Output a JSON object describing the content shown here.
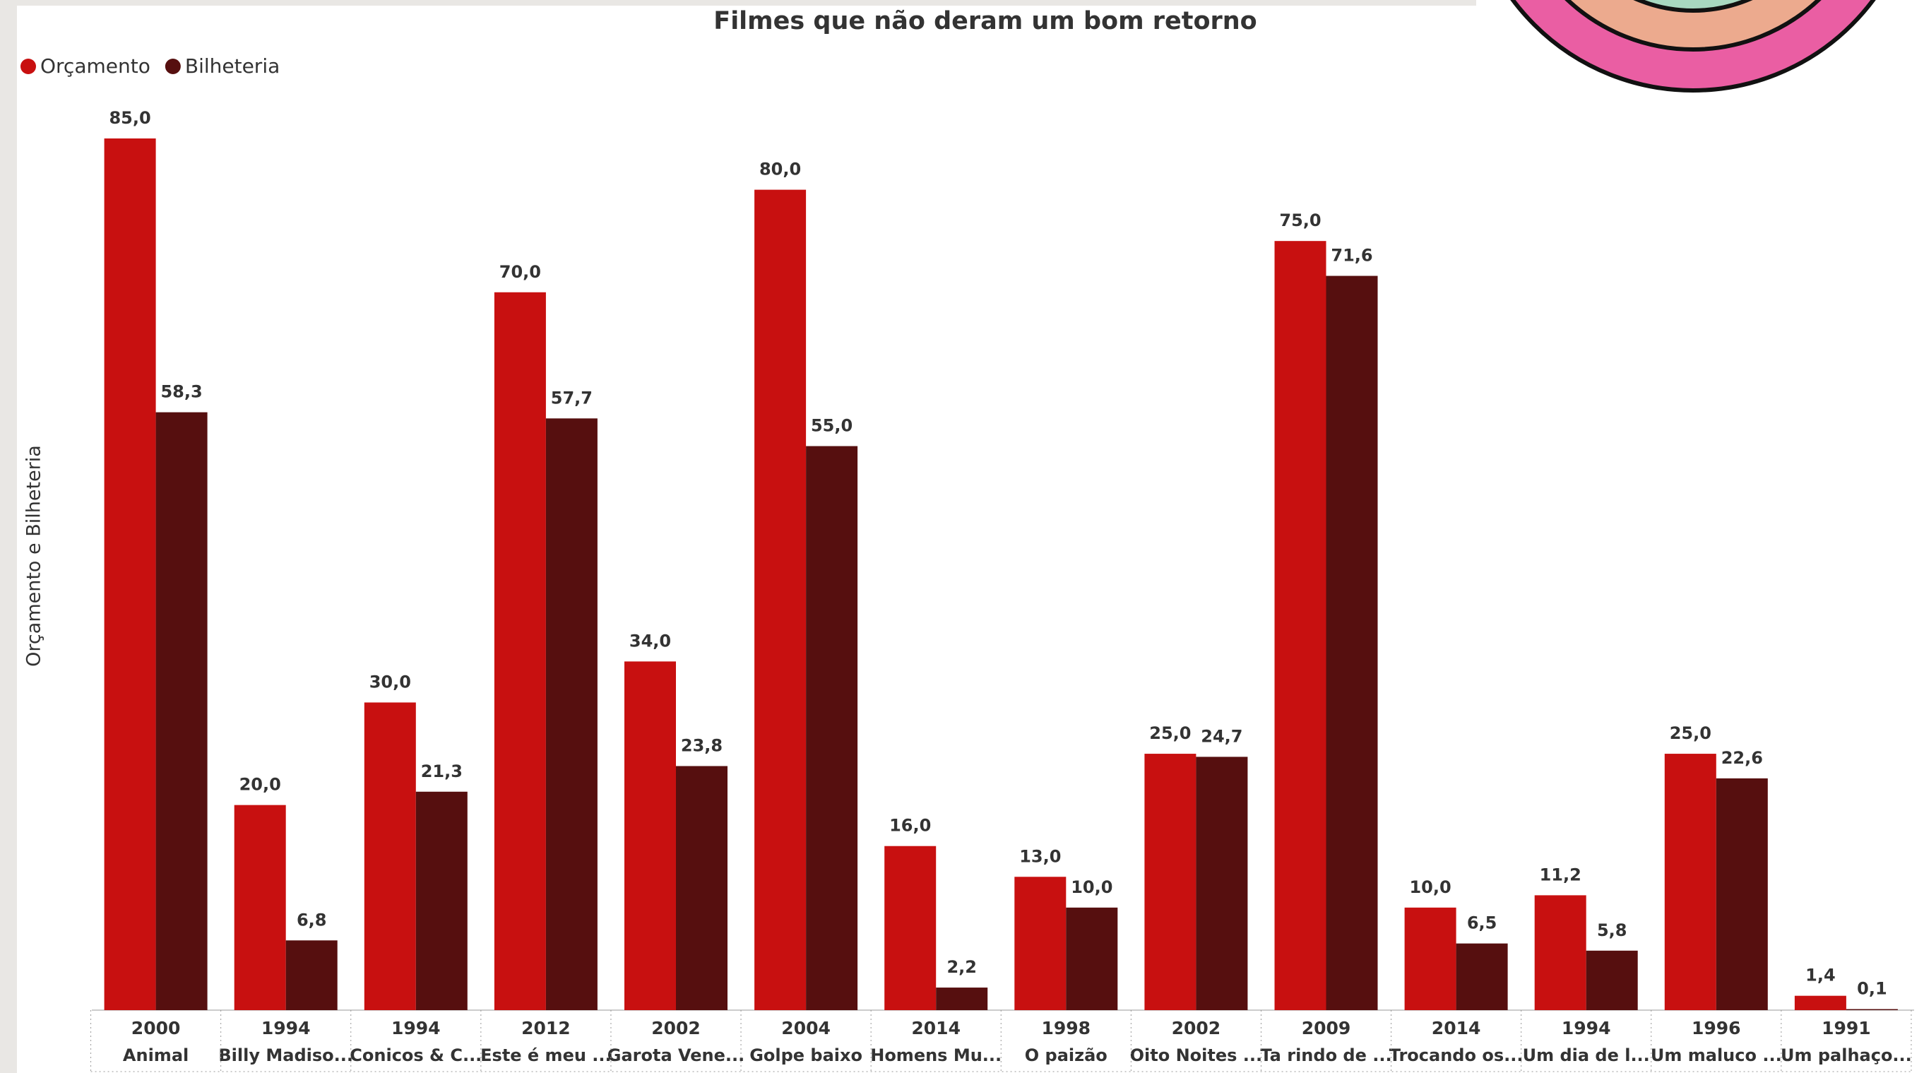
{
  "chart_data": {
    "type": "bar",
    "title": "Filmes que não deram um bom retorno",
    "y_label": "Orçamento e Bilheteria",
    "category_years": [
      "2000",
      "1994",
      "1994",
      "2012",
      "2002",
      "2004",
      "2014",
      "1998",
      "2002",
      "2009",
      "2014",
      "1994",
      "1996",
      "1991"
    ],
    "categories": [
      "Animal",
      "Billy Madiso...",
      "Conicos & C...",
      "Este é meu ...",
      "Garota Vene...",
      "Golpe baixo",
      "Homens Mu...",
      "O paizão",
      "Oito Noites ...",
      "Ta rindo de ...",
      "Trocando os...",
      "Um dia de l...",
      "Um maluco ...",
      "Um palhaço..."
    ],
    "series": [
      {
        "name": "Orçamento",
        "color": "#c81010",
        "values": [
          85,
          20,
          30,
          70,
          34,
          80,
          16,
          13,
          25,
          75,
          10,
          11.2,
          25,
          1.4
        ],
        "value_labels": [
          "85,0",
          "20,0",
          "30,0",
          "70,0",
          "34,0",
          "80,0",
          "16,0",
          "13,0",
          "25,0",
          "75,0",
          "10,0",
          "11,2",
          "25,0",
          "1,4"
        ]
      },
      {
        "name": "Bilheteria",
        "color": "#560f0f",
        "values": [
          58.3,
          6.8,
          21.3,
          57.7,
          23.8,
          55,
          2.2,
          10,
          24.7,
          71.6,
          6.5,
          5.8,
          22.6,
          0.1
        ],
        "value_labels": [
          "58,3",
          "6,8",
          "21,3",
          "57,7",
          "23,8",
          "55,0",
          "2,2",
          "10,0",
          "24,7",
          "71,6",
          "6,5",
          "5,8",
          "22,6",
          "0,1"
        ]
      }
    ],
    "ylim": [
      0,
      85
    ],
    "legend": "top-left"
  }
}
